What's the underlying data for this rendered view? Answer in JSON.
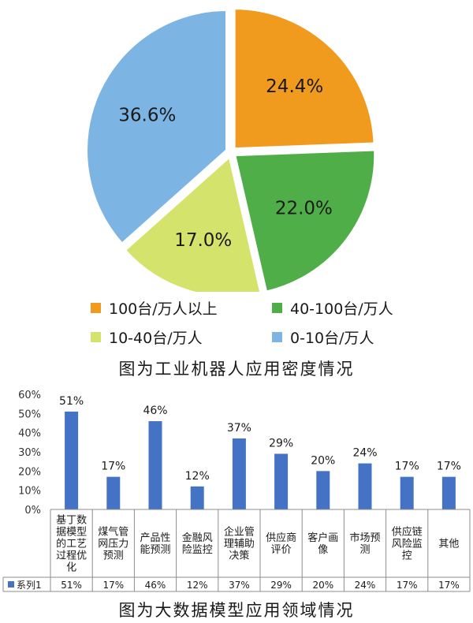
{
  "chart_data": [
    {
      "type": "pie",
      "title": "图为工业机器人应用密度情况",
      "slices": [
        {
          "label": "100台/万人以上",
          "value": 24.4,
          "display": "24.4%",
          "color": "#f09a1e"
        },
        {
          "label": "40-100台/万人",
          "value": 22.0,
          "display": "22.0%",
          "color": "#4fae48"
        },
        {
          "label": "10-40台/万人",
          "value": 17.0,
          "display": "17.0%",
          "color": "#d4e36b"
        },
        {
          "label": "0-10台/万人",
          "value": 36.6,
          "display": "36.6%",
          "color": "#7cb4e3"
        }
      ],
      "legend_position": "bottom"
    },
    {
      "type": "bar",
      "title": "图为大数据模型应用领域情况",
      "categories": [
        [
          "基丁数",
          "据模型",
          "的工艺",
          "过程优",
          "化"
        ],
        [
          "煤气管",
          "网压力",
          "预测"
        ],
        [
          "产品性",
          "能预测"
        ],
        [
          "金融风",
          "险监控"
        ],
        [
          "企业管",
          "理辅助",
          "决策"
        ],
        [
          "供应商",
          "评价"
        ],
        [
          "客户画",
          "像"
        ],
        [
          "市场预",
          "测"
        ],
        [
          "供应链",
          "风险监",
          "控"
        ],
        [
          "其他"
        ]
      ],
      "series": [
        {
          "name": "系列1",
          "values": [
            51,
            17,
            46,
            12,
            37,
            29,
            20,
            24,
            17,
            17
          ],
          "color": "#4472c4"
        }
      ],
      "value_labels": [
        "51%",
        "17%",
        "46%",
        "12%",
        "37%",
        "29%",
        "20%",
        "24%",
        "17%",
        "17%"
      ],
      "y_ticks": [
        "0%",
        "10%",
        "20%",
        "30%",
        "40%",
        "50%",
        "60%"
      ],
      "ylim": [
        0,
        60
      ],
      "data_table": true
    }
  ]
}
